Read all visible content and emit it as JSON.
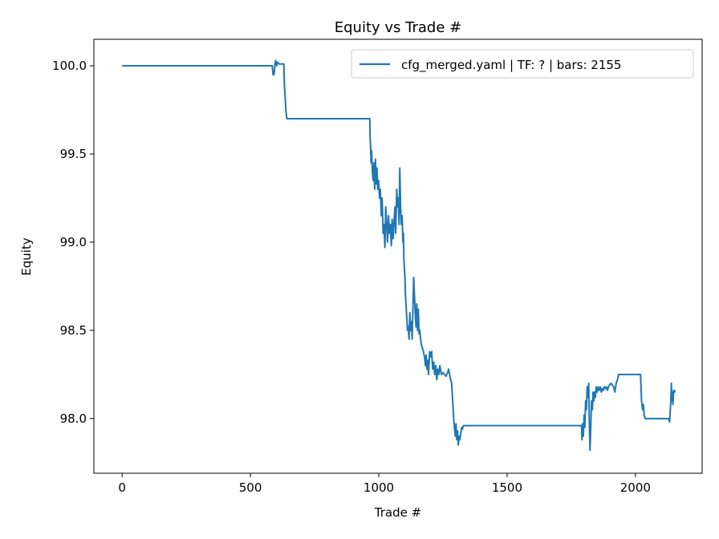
{
  "chart_data": {
    "type": "line",
    "title": "Equity vs Trade #",
    "xlabel": "Trade #",
    "ylabel": "Equity",
    "xlim": [
      -110,
      2260
    ],
    "ylim": [
      97.69,
      100.15
    ],
    "xticks": [
      0,
      500,
      1000,
      1500,
      2000
    ],
    "xtick_labels": [
      "0",
      "500",
      "1000",
      "1500",
      "2000"
    ],
    "yticks": [
      98.0,
      98.5,
      99.0,
      99.5,
      100.0
    ],
    "ytick_labels": [
      "98.0",
      "98.5",
      "99.0",
      "99.5",
      "100.0"
    ],
    "grid": false,
    "legend_position": "upper right",
    "series": [
      {
        "name": "cfg_merged.yaml | TF: ? | bars: 2155",
        "color": "#1f77b4",
        "points": [
          [
            0,
            100.0
          ],
          [
            580,
            100.0
          ],
          [
            585,
            100.0
          ],
          [
            588,
            99.95
          ],
          [
            592,
            99.95
          ],
          [
            595,
            100.0
          ],
          [
            598,
            100.03
          ],
          [
            602,
            100.0
          ],
          [
            606,
            100.02
          ],
          [
            612,
            100.01
          ],
          [
            630,
            100.01
          ],
          [
            632,
            99.9
          ],
          [
            634,
            99.85
          ],
          [
            637,
            99.78
          ],
          [
            638,
            99.75
          ],
          [
            640,
            99.72
          ],
          [
            642,
            99.7
          ],
          [
            965,
            99.7
          ],
          [
            966,
            99.6
          ],
          [
            968,
            99.55
          ],
          [
            970,
            99.45
          ],
          [
            972,
            99.52
          ],
          [
            975,
            99.4
          ],
          [
            978,
            99.35
          ],
          [
            981,
            99.45
          ],
          [
            984,
            99.3
          ],
          [
            987,
            99.47
          ],
          [
            990,
            99.33
          ],
          [
            993,
            99.42
          ],
          [
            996,
            99.3
          ],
          [
            999,
            99.35
          ],
          [
            1003,
            99.25
          ],
          [
            1006,
            99.3
          ],
          [
            1010,
            99.15
          ],
          [
            1013,
            99.25
          ],
          [
            1017,
            99.05
          ],
          [
            1020,
            99.1
          ],
          [
            1024,
            98.97
          ],
          [
            1027,
            99.2
          ],
          [
            1031,
            99.1
          ],
          [
            1034,
            99.0
          ],
          [
            1038,
            99.15
          ],
          [
            1041,
            99.05
          ],
          [
            1045,
            99.1
          ],
          [
            1049,
            98.98
          ],
          [
            1052,
            99.13
          ],
          [
            1056,
            99.02
          ],
          [
            1059,
            99.1
          ],
          [
            1063,
            99.2
          ],
          [
            1066,
            99.05
          ],
          [
            1070,
            99.3
          ],
          [
            1073,
            99.2
          ],
          [
            1076,
            99.25
          ],
          [
            1079,
            99.1
          ],
          [
            1082,
            99.42
          ],
          [
            1085,
            99.2
          ],
          [
            1088,
            99.1
          ],
          [
            1091,
            99.15
          ],
          [
            1094,
            99.0
          ],
          [
            1096,
            99.05
          ],
          [
            1098,
            98.9
          ],
          [
            1100,
            98.85
          ],
          [
            1102,
            98.8
          ],
          [
            1104,
            98.7
          ],
          [
            1106,
            98.65
          ],
          [
            1108,
            98.6
          ],
          [
            1110,
            98.55
          ],
          [
            1112,
            98.5
          ],
          [
            1115,
            98.52
          ],
          [
            1118,
            98.45
          ],
          [
            1121,
            98.6
          ],
          [
            1124,
            98.5
          ],
          [
            1127,
            98.55
          ],
          [
            1130,
            98.45
          ],
          [
            1133,
            98.62
          ],
          [
            1136,
            98.8
          ],
          [
            1139,
            98.7
          ],
          [
            1142,
            98.6
          ],
          [
            1145,
            98.52
          ],
          [
            1148,
            98.65
          ],
          [
            1151,
            98.5
          ],
          [
            1154,
            98.62
          ],
          [
            1157,
            98.48
          ],
          [
            1160,
            98.5
          ],
          [
            1163,
            98.45
          ],
          [
            1166,
            98.42
          ],
          [
            1170,
            98.4
          ],
          [
            1174,
            98.38
          ],
          [
            1178,
            98.35
          ],
          [
            1182,
            98.3
          ],
          [
            1185,
            98.36
          ],
          [
            1188,
            98.28
          ],
          [
            1191,
            98.33
          ],
          [
            1194,
            98.25
          ],
          [
            1198,
            98.38
          ],
          [
            1202,
            98.35
          ],
          [
            1206,
            98.38
          ],
          [
            1210,
            98.28
          ],
          [
            1214,
            98.32
          ],
          [
            1218,
            98.25
          ],
          [
            1222,
            98.3
          ],
          [
            1226,
            98.22
          ],
          [
            1230,
            98.28
          ],
          [
            1234,
            98.25
          ],
          [
            1238,
            98.3
          ],
          [
            1244,
            98.25
          ],
          [
            1250,
            98.26
          ],
          [
            1256,
            98.25
          ],
          [
            1262,
            98.24
          ],
          [
            1268,
            98.26
          ],
          [
            1272,
            98.28
          ],
          [
            1276,
            98.25
          ],
          [
            1280,
            98.22
          ],
          [
            1284,
            98.2
          ],
          [
            1288,
            98.1
          ],
          [
            1292,
            98.0
          ],
          [
            1295,
            97.95
          ],
          [
            1298,
            97.9
          ],
          [
            1301,
            97.97
          ],
          [
            1304,
            97.88
          ],
          [
            1307,
            97.93
          ],
          [
            1310,
            97.85
          ],
          [
            1313,
            97.9
          ],
          [
            1316,
            97.88
          ],
          [
            1320,
            97.92
          ],
          [
            1323,
            97.95
          ],
          [
            1326,
            97.94
          ],
          [
            1330,
            97.96
          ],
          [
            1335,
            97.96
          ],
          [
            1790,
            97.96
          ],
          [
            1792,
            97.88
          ],
          [
            1794,
            97.97
          ],
          [
            1797,
            97.9
          ],
          [
            1800,
            98.02
          ],
          [
            1803,
            97.95
          ],
          [
            1806,
            98.1
          ],
          [
            1809,
            98.05
          ],
          [
            1812,
            98.18
          ],
          [
            1815,
            98.12
          ],
          [
            1818,
            98.2
          ],
          [
            1820,
            98.0
          ],
          [
            1823,
            97.82
          ],
          [
            1826,
            97.95
          ],
          [
            1829,
            98.1
          ],
          [
            1832,
            98.05
          ],
          [
            1835,
            98.15
          ],
          [
            1838,
            98.1
          ],
          [
            1841,
            98.15
          ],
          [
            1844,
            98.12
          ],
          [
            1847,
            98.18
          ],
          [
            1851,
            98.15
          ],
          [
            1855,
            98.18
          ],
          [
            1859,
            98.16
          ],
          [
            1863,
            98.18
          ],
          [
            1867,
            98.15
          ],
          [
            1871,
            98.17
          ],
          [
            1875,
            98.16
          ],
          [
            1879,
            98.18
          ],
          [
            1883,
            98.17
          ],
          [
            1887,
            98.18
          ],
          [
            1891,
            98.16
          ],
          [
            1895,
            98.18
          ],
          [
            1899,
            98.19
          ],
          [
            1905,
            98.2
          ],
          [
            1915,
            98.18
          ],
          [
            1920,
            98.15
          ],
          [
            1925,
            98.2
          ],
          [
            1930,
            98.22
          ],
          [
            1935,
            98.25
          ],
          [
            2020,
            98.25
          ],
          [
            2024,
            98.1
          ],
          [
            2028,
            98.05
          ],
          [
            2031,
            98.08
          ],
          [
            2034,
            98.02
          ],
          [
            2038,
            98.0
          ],
          [
            2042,
            98.0
          ],
          [
            2130,
            98.0
          ],
          [
            2133,
            97.98
          ],
          [
            2136,
            98.05
          ],
          [
            2138,
            98.1
          ],
          [
            2140,
            98.2
          ],
          [
            2142,
            98.1
          ],
          [
            2144,
            98.15
          ],
          [
            2146,
            98.08
          ],
          [
            2149,
            98.16
          ],
          [
            2152,
            98.15
          ],
          [
            2155,
            98.16
          ]
        ]
      }
    ]
  }
}
